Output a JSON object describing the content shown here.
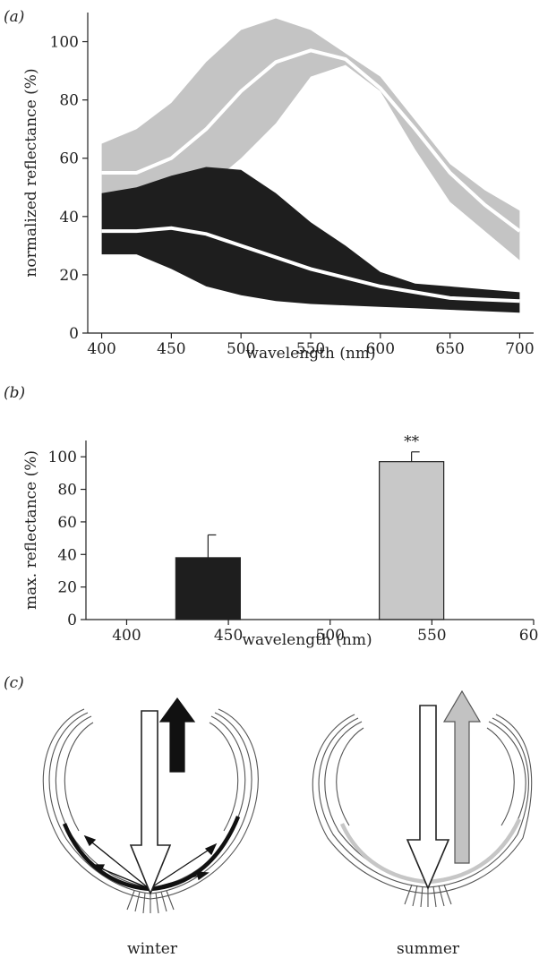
{
  "chart_data": [
    {
      "panel": "(a)",
      "type": "area",
      "xlabel": "wavelength (nm)",
      "ylabel": "normalized reflectance (%)",
      "xlim": [
        390,
        710
      ],
      "ylim": [
        0,
        110
      ],
      "xticks": [
        400,
        450,
        500,
        550,
        600,
        650,
        700
      ],
      "yticks": [
        0,
        20,
        40,
        60,
        80,
        100
      ],
      "grid": false,
      "series": [
        {
          "color": "#c4c4c4",
          "x": [
            400,
            425,
            450,
            475,
            500,
            525,
            550,
            575,
            600,
            625,
            650,
            675,
            700
          ],
          "mean": [
            55,
            55,
            60,
            70,
            83,
            93,
            97,
            94,
            84,
            70,
            55,
            44,
            35
          ],
          "upper": [
            65,
            70,
            79,
            93,
            104,
            108,
            104,
            96,
            88,
            73,
            58,
            49,
            42
          ],
          "lower": [
            45,
            44,
            45,
            50,
            60,
            72,
            88,
            92,
            83,
            63,
            45,
            35,
            25
          ]
        },
        {
          "color": "#1e1e1e",
          "x": [
            400,
            425,
            450,
            475,
            500,
            525,
            550,
            575,
            600,
            625,
            650,
            675,
            700
          ],
          "mean": [
            35,
            35,
            36,
            34,
            30,
            26,
            22,
            19,
            16,
            14,
            12,
            11.5,
            11
          ],
          "upper": [
            48,
            50,
            54,
            57,
            56,
            48,
            38,
            30,
            21,
            17,
            16,
            15,
            14
          ],
          "lower": [
            27,
            27,
            22,
            16,
            13,
            11,
            10,
            9.5,
            9,
            8.5,
            8,
            7.5,
            7
          ]
        }
      ]
    },
    {
      "panel": "(b)",
      "type": "bar",
      "xlabel": "wavelength (nm)",
      "ylabel": "max. reflectance (%)",
      "xlim": [
        380,
        600
      ],
      "ylim": [
        0,
        110
      ],
      "xticks": [
        400,
        450,
        500,
        550,
        600
      ],
      "yticks": [
        0,
        20,
        40,
        60,
        80,
        100
      ],
      "bars": [
        {
          "x": 440,
          "value": 38,
          "error": 14,
          "color": "#1e1e1e",
          "annotation": ""
        },
        {
          "x": 540,
          "value": 97,
          "error": 6,
          "color": "#c8c8c8",
          "annotation": "**"
        }
      ]
    }
  ],
  "panel_c": {
    "label": "(c)",
    "left_caption": "winter",
    "right_caption": "summer"
  }
}
